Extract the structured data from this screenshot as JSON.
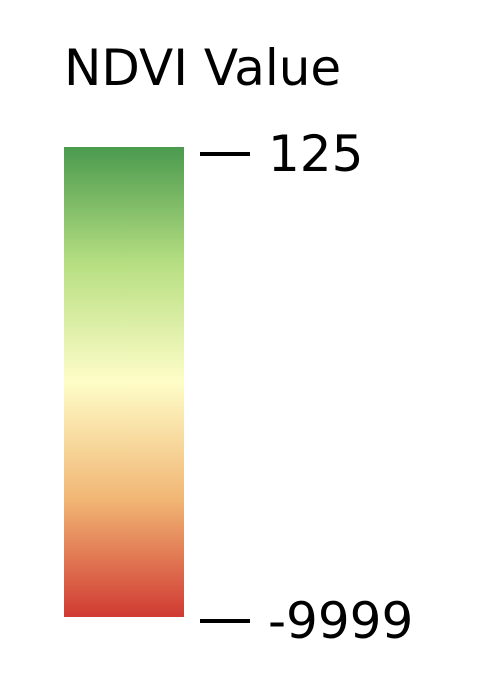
{
  "legend": {
    "title": "NDVI Value",
    "max_label": "125",
    "min_label": "-9999",
    "ramp_colors_top_to_bottom": [
      "#4a9a4e",
      "#b7df82",
      "#fefdc8",
      "#f1b674",
      "#d03a32"
    ]
  }
}
